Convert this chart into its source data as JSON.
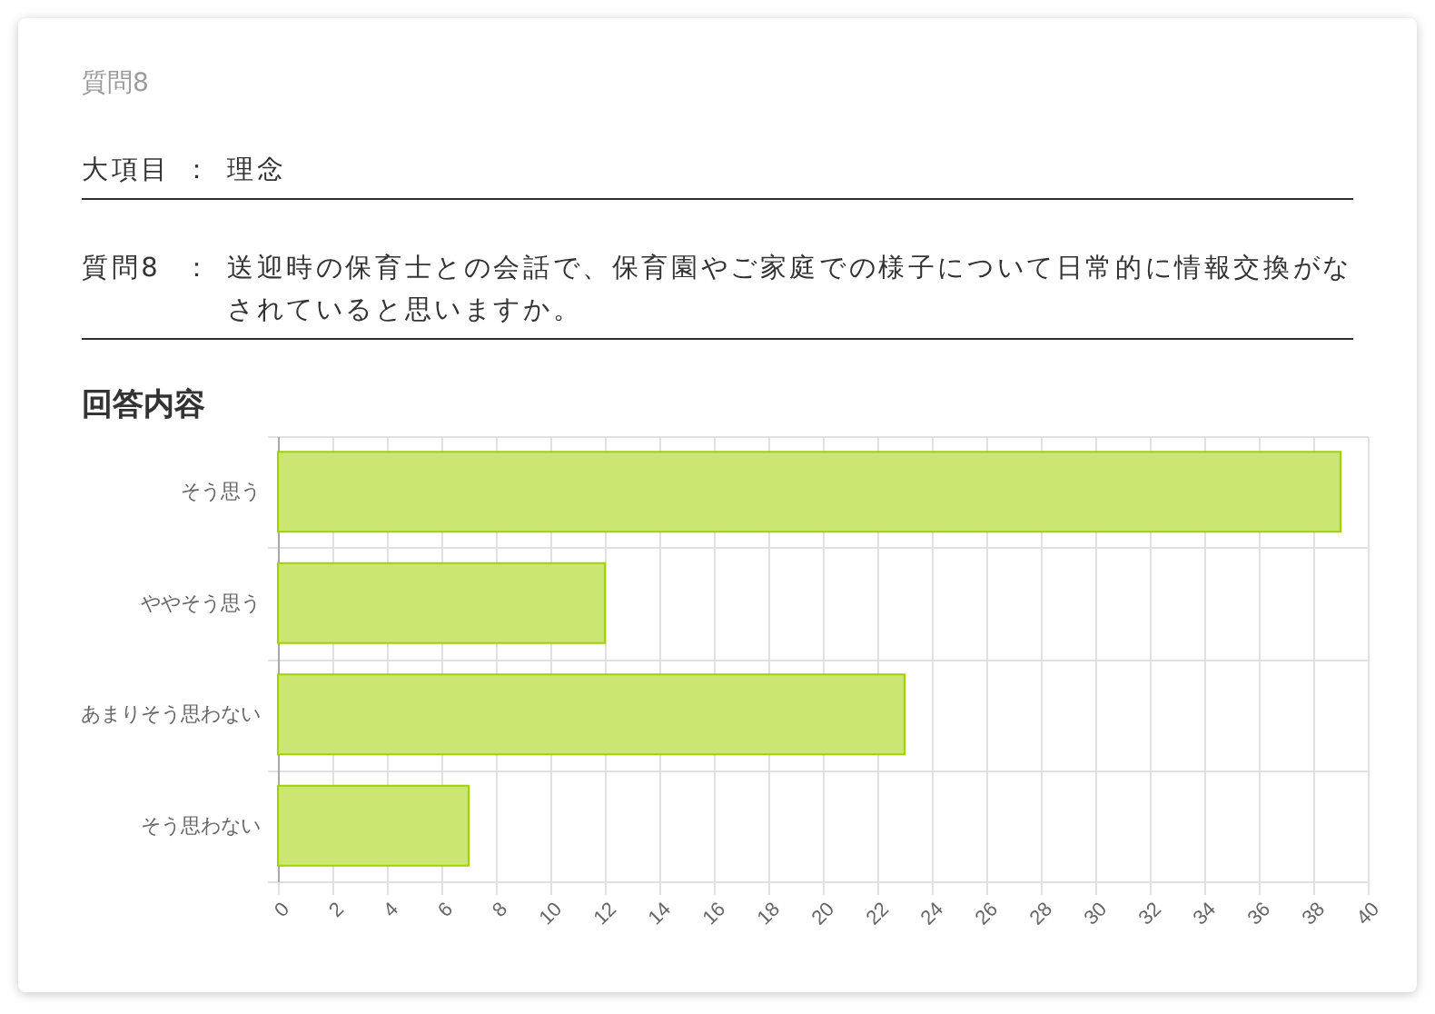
{
  "chart_data": {
    "type": "bar",
    "orientation": "horizontal",
    "title": "回答内容",
    "annotations": [
      "質問8",
      "大項目",
      "：",
      "理念",
      "質問8",
      "：",
      "送迎時の保育士との会話で、保育園やご家庭での様子について日常的に情報交換がなされていると思いますか。"
    ],
    "categories": [
      "そう思う",
      "ややそう思う",
      "あまりそう思わない",
      "そう思わない"
    ],
    "values": [
      39,
      12,
      23,
      7
    ],
    "color": "#cbe672",
    "xlim": [
      0,
      40
    ],
    "xticks": [
      0,
      2,
      4,
      6,
      8,
      10,
      12,
      14,
      16,
      18,
      20,
      22,
      24,
      26,
      28,
      30,
      32,
      34,
      36,
      38,
      40
    ],
    "grid": true
  }
}
